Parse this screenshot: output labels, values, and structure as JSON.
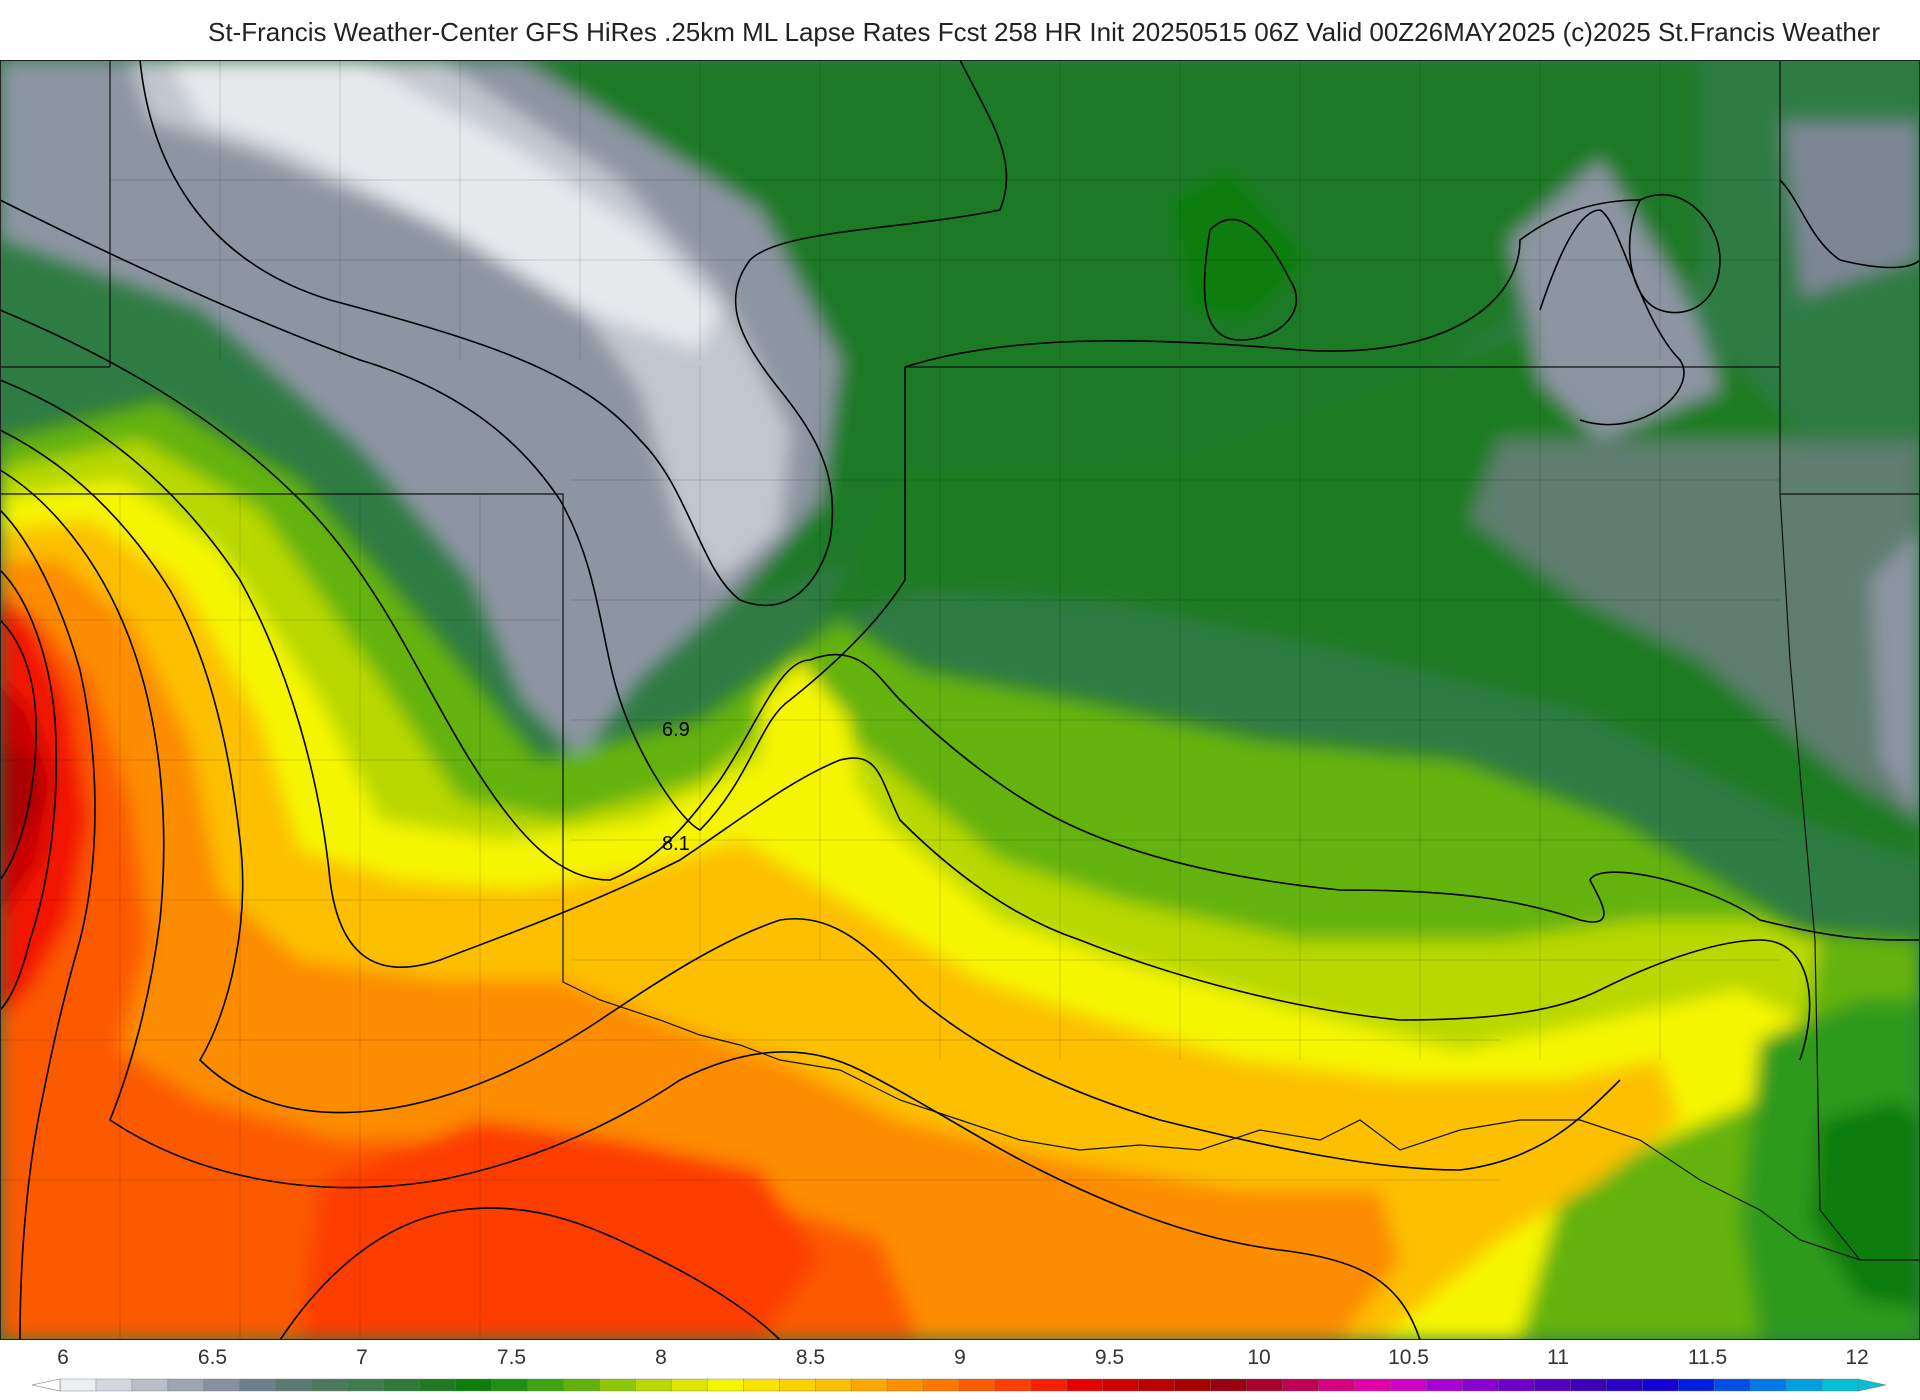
{
  "title": "St-Francis Weather-Center GFS HiRes .25km ML Lapse Rates  Fcst 258 HR Init 20250515 06Z  Valid 00Z26MAY2025    (c)2025 St.Francis Weather",
  "contour_labels": [
    "6.9",
    "8.1"
  ],
  "legend": {
    "ticks": [
      "6",
      "6.5",
      "7",
      "7.5",
      "8",
      "8.5",
      "9",
      "9.5",
      "10",
      "10.5",
      "11",
      "11.5",
      "12"
    ],
    "palette": [
      "#eceef0",
      "#d3d7dc",
      "#b9bec7",
      "#9ea5b1",
      "#87909e",
      "#6e7f8c",
      "#5c7a72",
      "#4d7a5c",
      "#3f7d4e",
      "#2e7b3a",
      "#1f7a22",
      "#0d7d0d",
      "#218f12",
      "#3ea40f",
      "#63b20c",
      "#8dc50a",
      "#b8d806",
      "#dde703",
      "#f5f500",
      "#f8e400",
      "#fad200",
      "#fcbe00",
      "#fca800",
      "#fc9000",
      "#fc7800",
      "#fc5c00",
      "#fc3e00",
      "#f62000",
      "#e80000",
      "#d00000",
      "#bc0000",
      "#a80000",
      "#990011",
      "#a8002c",
      "#bf0055",
      "#d80080",
      "#e300a8",
      "#d000c7",
      "#a800d0",
      "#8a00d0",
      "#6e00c8",
      "#5400c0",
      "#3c00b8",
      "#2800c8",
      "#1400d8",
      "#0020e0",
      "#0050e8",
      "#0078e8",
      "#00a0e0",
      "#00c0d8"
    ]
  }
}
